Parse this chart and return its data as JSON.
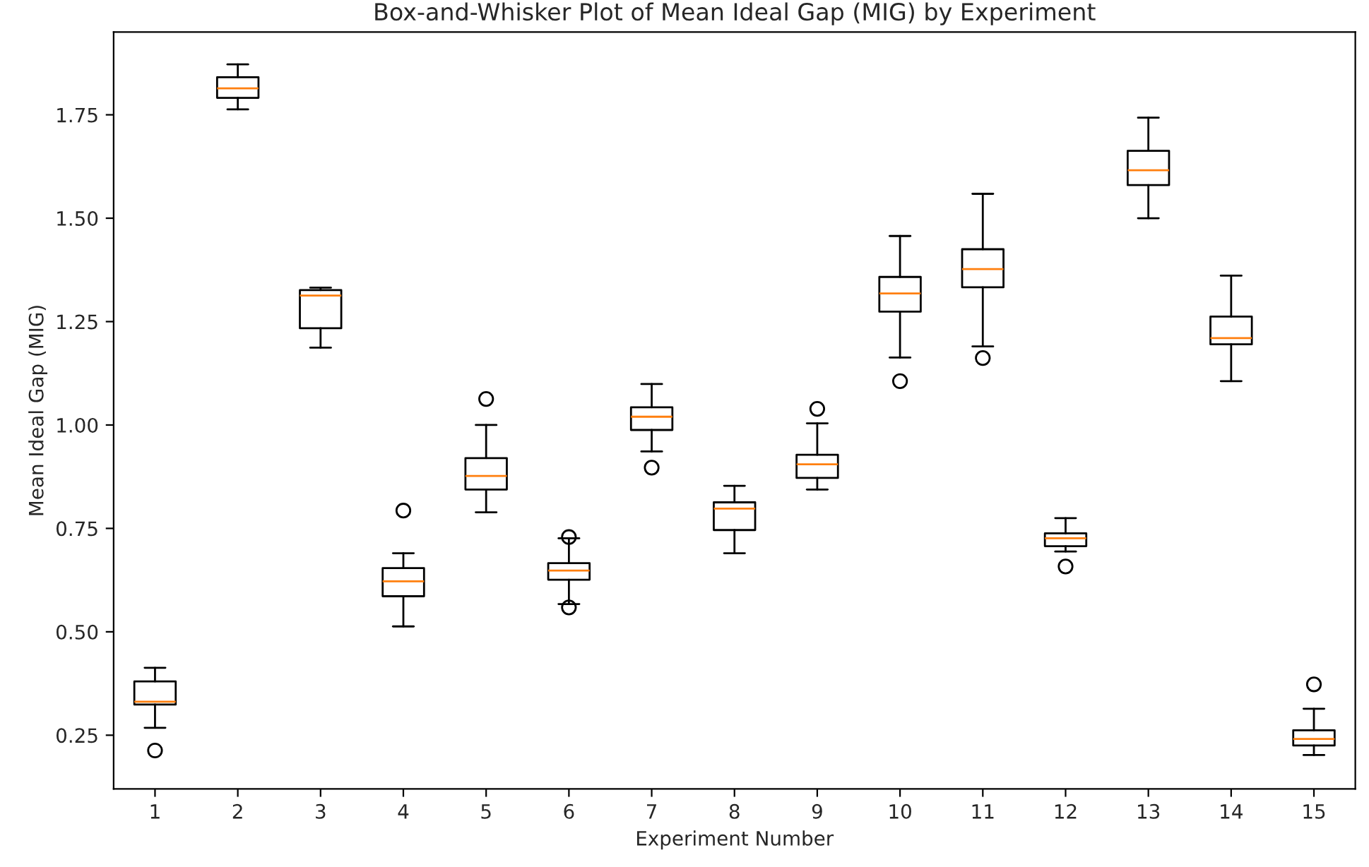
{
  "chart_data": {
    "type": "box",
    "title": "Box-and-Whisker Plot of Mean Ideal Gap (MIG) by Experiment",
    "xlabel": "Experiment Number",
    "ylabel": "Mean Ideal Gap (MIG)",
    "categories": [
      "1",
      "2",
      "3",
      "4",
      "5",
      "6",
      "7",
      "8",
      "9",
      "10",
      "11",
      "12",
      "13",
      "14",
      "15"
    ],
    "boxes": [
      {
        "low": 0.268,
        "q1": 0.324,
        "median": 0.331,
        "q3": 0.38,
        "high": 0.413,
        "outliers": [
          0.213
        ]
      },
      {
        "low": 1.763,
        "q1": 1.791,
        "median": 1.814,
        "q3": 1.841,
        "high": 1.872
      },
      {
        "low": 1.187,
        "q1": 1.234,
        "median": 1.313,
        "q3": 1.326,
        "high": 1.332
      },
      {
        "low": 0.513,
        "q1": 0.586,
        "median": 0.622,
        "q3": 0.654,
        "high": 0.69,
        "outliers": [
          0.793
        ]
      },
      {
        "low": 0.789,
        "q1": 0.844,
        "median": 0.877,
        "q3": 0.92,
        "high": 1.0,
        "outliers": [
          1.063
        ]
      },
      {
        "low": 0.567,
        "q1": 0.626,
        "median": 0.648,
        "q3": 0.666,
        "high": 0.726,
        "outliers": [
          0.729,
          0.559
        ]
      },
      {
        "low": 0.936,
        "q1": 0.988,
        "median": 1.02,
        "q3": 1.043,
        "high": 1.099,
        "outliers": [
          0.897
        ]
      },
      {
        "low": 0.69,
        "q1": 0.746,
        "median": 0.798,
        "q3": 0.813,
        "high": 0.853
      },
      {
        "low": 0.844,
        "q1": 0.872,
        "median": 0.905,
        "q3": 0.928,
        "high": 1.004,
        "outliers": [
          1.039
        ]
      },
      {
        "low": 1.163,
        "q1": 1.274,
        "median": 1.318,
        "q3": 1.358,
        "high": 1.457,
        "outliers": [
          1.106
        ]
      },
      {
        "low": 1.19,
        "q1": 1.333,
        "median": 1.377,
        "q3": 1.425,
        "high": 1.559,
        "outliers": [
          1.162
        ]
      },
      {
        "low": 0.694,
        "q1": 0.707,
        "median": 0.726,
        "q3": 0.738,
        "high": 0.775,
        "outliers": [
          0.658
        ]
      },
      {
        "low": 1.5,
        "q1": 1.58,
        "median": 1.616,
        "q3": 1.663,
        "high": 1.743
      },
      {
        "low": 1.106,
        "q1": 1.195,
        "median": 1.21,
        "q3": 1.262,
        "high": 1.361
      },
      {
        "low": 0.202,
        "q1": 0.225,
        "median": 0.241,
        "q3": 0.262,
        "high": 0.314,
        "outliers": [
          0.373
        ]
      }
    ],
    "ylim": [
      0.12,
      1.95
    ],
    "yticks": [
      {
        "value": 0.25,
        "label": "0.25"
      },
      {
        "value": 0.5,
        "label": "0.50"
      },
      {
        "value": 0.75,
        "label": "0.75"
      },
      {
        "value": 1.0,
        "label": "1.00"
      },
      {
        "value": 1.25,
        "label": "1.25"
      },
      {
        "value": 1.5,
        "label": "1.50"
      },
      {
        "value": 1.75,
        "label": "1.75"
      }
    ]
  }
}
